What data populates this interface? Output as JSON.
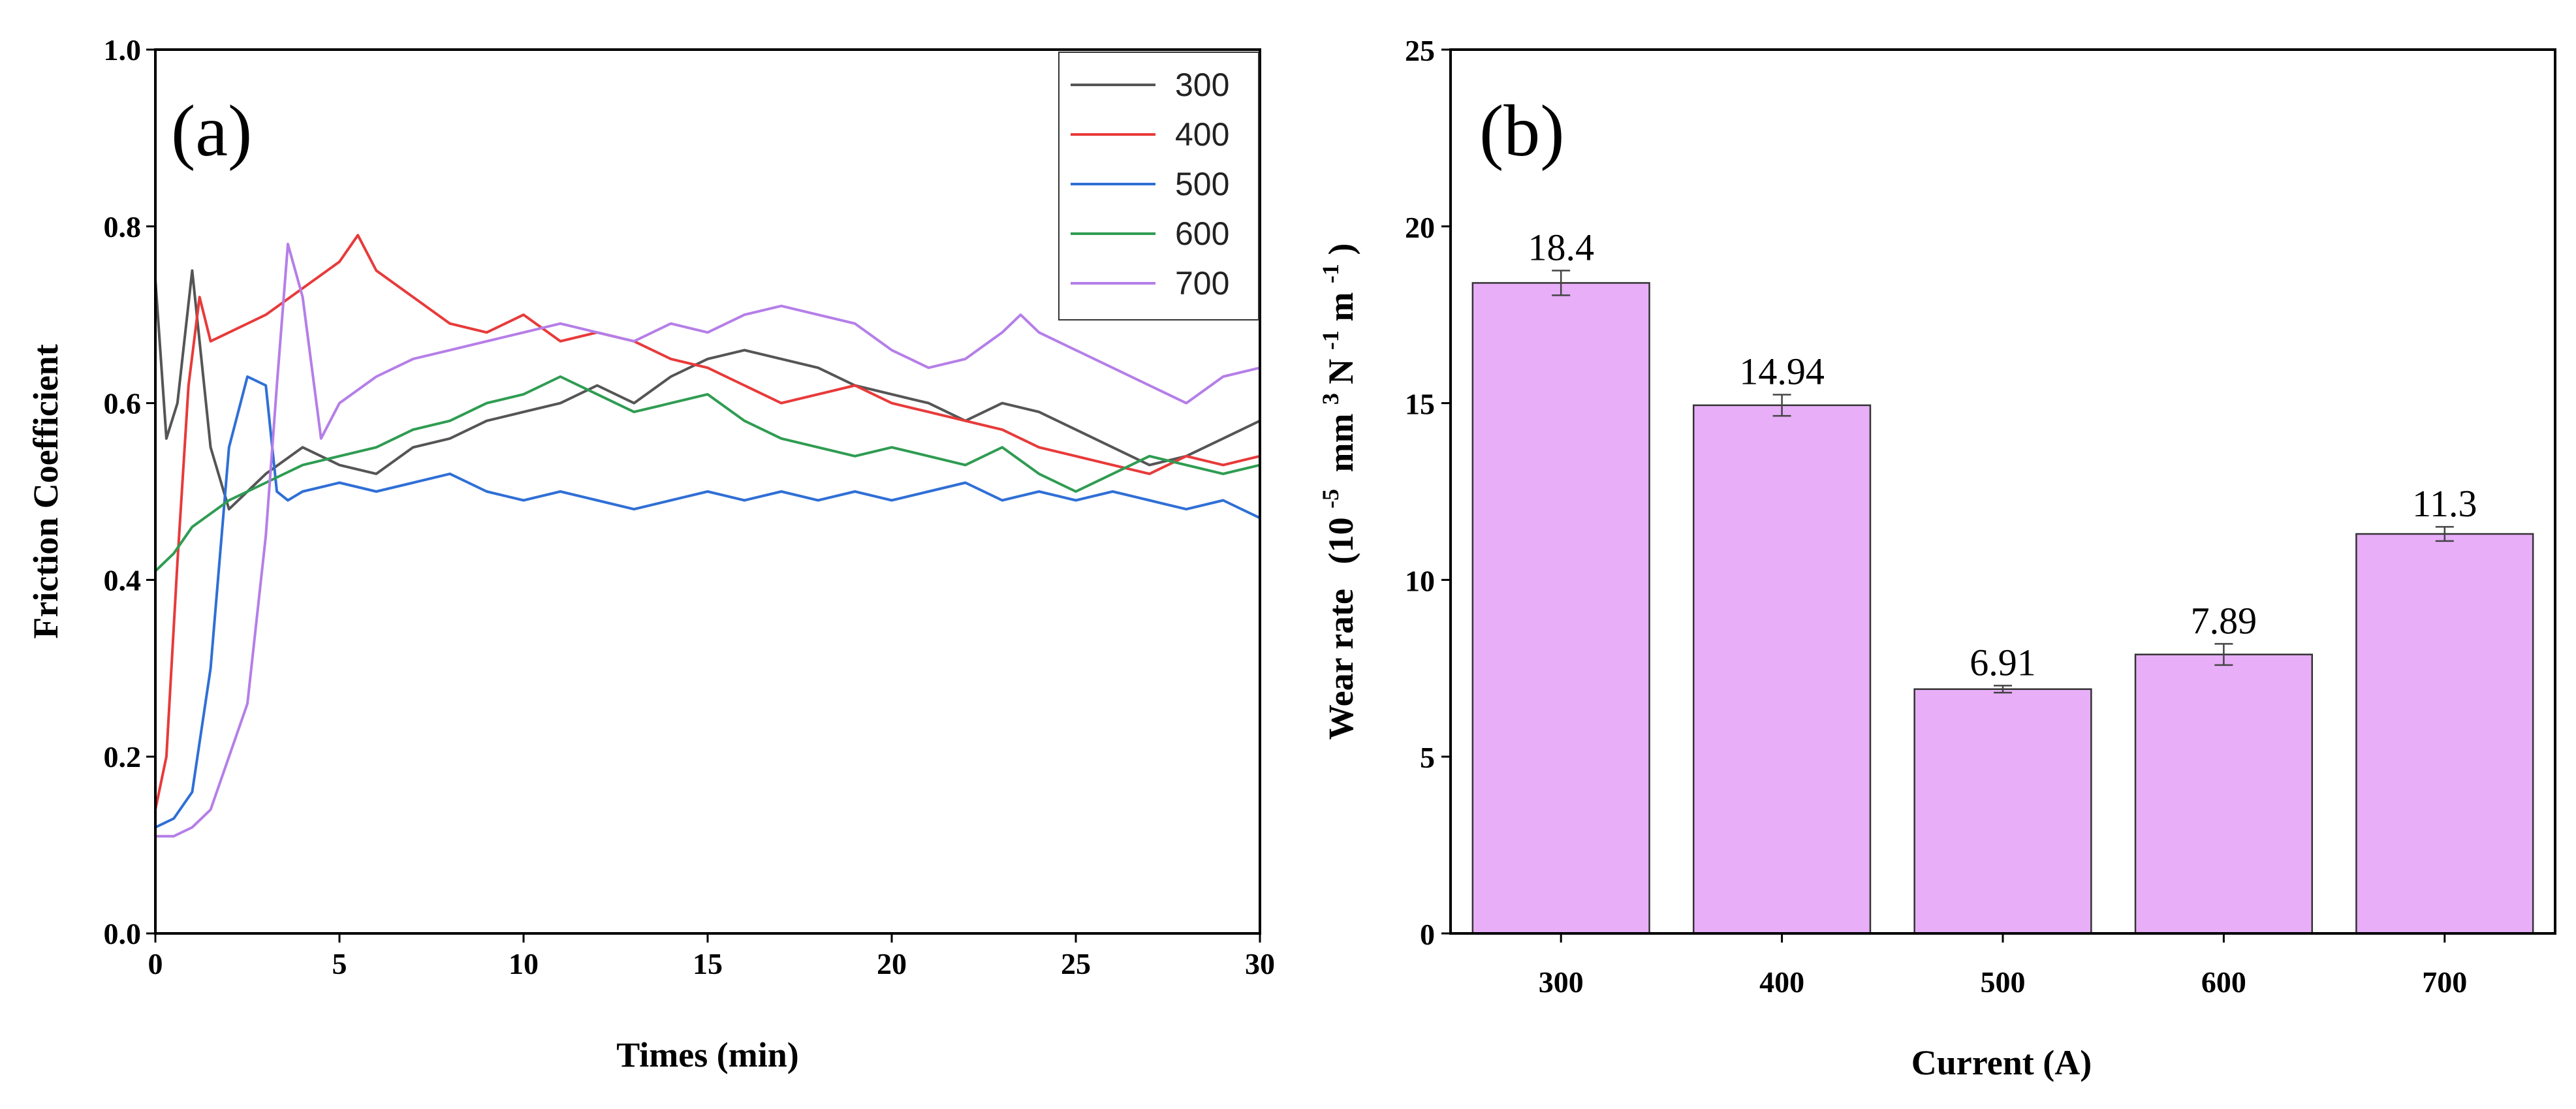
{
  "chart_data": [
    {
      "type": "line",
      "panel_label": "(a)",
      "xlabel": "Times (min)",
      "ylabel": "Friction Coefficient",
      "xlim": [
        0,
        30
      ],
      "ylim": [
        0,
        1.0
      ],
      "xticks": [
        "0",
        "5",
        "10",
        "15",
        "20",
        "25",
        "30"
      ],
      "yticks": [
        "0.0",
        "0.2",
        "0.4",
        "0.6",
        "0.8",
        "1.0"
      ],
      "legend_position": "top-right",
      "series": [
        {
          "name": "300",
          "color": "#555555",
          "x": [
            0,
            0.3,
            0.6,
            1,
            1.5,
            2,
            3,
            4,
            5,
            6,
            7,
            8,
            9,
            10,
            11,
            12,
            13,
            14,
            15,
            16,
            17,
            18,
            19,
            20,
            21,
            22,
            23,
            24,
            25,
            26,
            27,
            28,
            29,
            30
          ],
          "y": [
            0.74,
            0.56,
            0.6,
            0.75,
            0.55,
            0.48,
            0.52,
            0.55,
            0.53,
            0.52,
            0.55,
            0.56,
            0.58,
            0.59,
            0.6,
            0.62,
            0.6,
            0.63,
            0.65,
            0.66,
            0.65,
            0.64,
            0.62,
            0.61,
            0.6,
            0.58,
            0.6,
            0.59,
            0.57,
            0.55,
            0.53,
            0.54,
            0.56,
            0.58
          ]
        },
        {
          "name": "400",
          "color": "#e83a3a",
          "x": [
            0,
            0.3,
            0.6,
            0.9,
            1.2,
            1.5,
            2,
            3,
            4,
            5,
            5.5,
            6,
            7,
            8,
            9,
            10,
            11,
            12,
            13,
            14,
            15,
            16,
            17,
            18,
            19,
            20,
            21,
            22,
            23,
            24,
            25,
            26,
            27,
            28,
            29,
            30
          ],
          "y": [
            0.14,
            0.2,
            0.42,
            0.62,
            0.72,
            0.67,
            0.68,
            0.7,
            0.73,
            0.76,
            0.79,
            0.75,
            0.72,
            0.69,
            0.68,
            0.7,
            0.67,
            0.68,
            0.67,
            0.65,
            0.64,
            0.62,
            0.6,
            0.61,
            0.62,
            0.6,
            0.59,
            0.58,
            0.57,
            0.55,
            0.54,
            0.53,
            0.52,
            0.54,
            0.53,
            0.54
          ]
        },
        {
          "name": "500",
          "color": "#2f6fd6",
          "x": [
            0,
            0.5,
            1,
            1.5,
            2,
            2.5,
            3,
            3.3,
            3.6,
            4,
            5,
            6,
            7,
            8,
            9,
            10,
            11,
            12,
            13,
            14,
            15,
            16,
            17,
            18,
            19,
            20,
            21,
            22,
            23,
            24,
            25,
            26,
            27,
            28,
            29,
            30
          ],
          "y": [
            0.12,
            0.13,
            0.16,
            0.3,
            0.55,
            0.63,
            0.62,
            0.5,
            0.49,
            0.5,
            0.51,
            0.5,
            0.51,
            0.52,
            0.5,
            0.49,
            0.5,
            0.49,
            0.48,
            0.49,
            0.5,
            0.49,
            0.5,
            0.49,
            0.5,
            0.49,
            0.5,
            0.51,
            0.49,
            0.5,
            0.49,
            0.5,
            0.49,
            0.48,
            0.49,
            0.47
          ]
        },
        {
          "name": "600",
          "color": "#2f9c52",
          "x": [
            0,
            0.5,
            1,
            2,
            3,
            4,
            5,
            6,
            7,
            8,
            9,
            10,
            11,
            12,
            13,
            14,
            15,
            16,
            17,
            18,
            19,
            20,
            21,
            22,
            23,
            24,
            25,
            26,
            27,
            28,
            29,
            30
          ],
          "y": [
            0.41,
            0.43,
            0.46,
            0.49,
            0.51,
            0.53,
            0.54,
            0.55,
            0.57,
            0.58,
            0.6,
            0.61,
            0.63,
            0.61,
            0.59,
            0.6,
            0.61,
            0.58,
            0.56,
            0.55,
            0.54,
            0.55,
            0.54,
            0.53,
            0.55,
            0.52,
            0.5,
            0.52,
            0.54,
            0.53,
            0.52,
            0.53
          ]
        },
        {
          "name": "700",
          "color": "#b57ee8",
          "x": [
            0,
            0.5,
            1,
            1.5,
            2,
            2.5,
            3,
            3.3,
            3.6,
            4,
            4.5,
            5,
            6,
            7,
            8,
            9,
            10,
            11,
            12,
            13,
            14,
            15,
            16,
            17,
            18,
            19,
            20,
            21,
            22,
            23,
            23.5,
            24,
            25,
            26,
            27,
            28,
            29,
            30
          ],
          "y": [
            0.11,
            0.11,
            0.12,
            0.14,
            0.2,
            0.26,
            0.45,
            0.62,
            0.78,
            0.72,
            0.56,
            0.6,
            0.63,
            0.65,
            0.66,
            0.67,
            0.68,
            0.69,
            0.68,
            0.67,
            0.69,
            0.68,
            0.7,
            0.71,
            0.7,
            0.69,
            0.66,
            0.64,
            0.65,
            0.68,
            0.7,
            0.68,
            0.66,
            0.64,
            0.62,
            0.6,
            0.63,
            0.64
          ]
        }
      ]
    },
    {
      "type": "bar",
      "panel_label": "(b)",
      "xlabel": "Current (A)",
      "ylabel_main": "Wear rate",
      "ylabel_units": "(10",
      "ylabel_exp1": "-5",
      "ylabel_units2": "mm",
      "ylabel_exp2": "3",
      "ylabel_units3": "N",
      "ylabel_exp3": "-1",
      "ylabel_units4": "m",
      "ylabel_exp4": "-1",
      "ylabel_close": ")",
      "ylim": [
        0,
        25
      ],
      "yticks": [
        "0",
        "5",
        "10",
        "15",
        "20",
        "25"
      ],
      "categories": [
        "300",
        "400",
        "500",
        "600",
        "700"
      ],
      "values": [
        18.4,
        14.94,
        6.91,
        7.89,
        11.3
      ],
      "value_labels": [
        "18.4",
        "14.94",
        "6.91",
        "7.89",
        "11.3"
      ],
      "errors": [
        0.35,
        0.3,
        0.1,
        0.3,
        0.2
      ],
      "bar_color": "#e8aef8"
    }
  ]
}
